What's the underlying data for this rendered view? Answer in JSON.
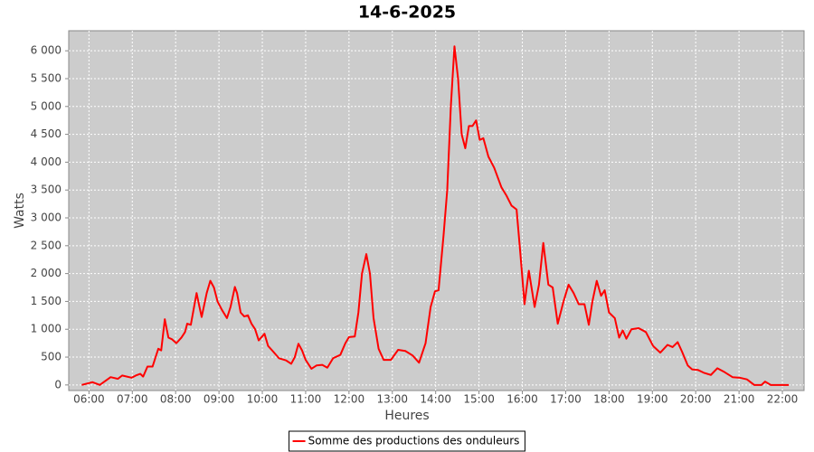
{
  "chart_data": {
    "type": "line",
    "title": "14-6-2025",
    "x_label": "Heures",
    "y_label": "Watts",
    "grid": true,
    "legend_position": "bottom",
    "xlim": [
      "05:32",
      "22:30"
    ],
    "xticks": [
      "06:00",
      "07:00",
      "08:00",
      "09:00",
      "10:00",
      "11:00",
      "12:00",
      "13:00",
      "14:00",
      "15:00",
      "16:00",
      "17:00",
      "18:00",
      "19:00",
      "20:00",
      "21:00",
      "22:00"
    ],
    "ylim": [
      -100,
      6360
    ],
    "yticks": [
      0,
      500,
      {
        "value": 1000,
        "label": "1 000"
      },
      {
        "value": 1500,
        "label": "1 500"
      },
      {
        "value": 2000,
        "label": "2 000"
      },
      {
        "value": 2500,
        "label": "2 500"
      },
      {
        "value": 3000,
        "label": "3 000"
      },
      {
        "value": 3500,
        "label": "3 500"
      },
      {
        "value": 4000,
        "label": "4 000"
      },
      {
        "value": 4500,
        "label": "4 500"
      },
      {
        "value": 5000,
        "label": "5 000"
      },
      {
        "value": 5500,
        "label": "5 500"
      },
      {
        "value": 6000,
        "label": "6 000"
      }
    ],
    "x": [
      "05:50",
      "06:05",
      "06:15",
      "06:30",
      "06:40",
      "06:46",
      "06:59",
      "07:05",
      "07:11",
      "07:15",
      "07:21",
      "07:28",
      "07:36",
      "07:40",
      "07:45",
      "07:50",
      "07:55",
      "08:01",
      "08:08",
      "08:13",
      "08:16",
      "08:21",
      "08:29",
      "08:33",
      "08:36",
      "08:43",
      "08:48",
      "08:53",
      "08:58",
      "09:04",
      "09:11",
      "09:16",
      "09:22",
      "09:25",
      "09:30",
      "09:35",
      "09:40",
      "09:45",
      "09:50",
      "09:55",
      "10:03",
      "10:08",
      "10:15",
      "10:23",
      "10:33",
      "10:40",
      "10:45",
      "10:50",
      "10:55",
      "11:00",
      "11:08",
      "11:15",
      "11:23",
      "11:30",
      "11:38",
      "11:48",
      "11:55",
      "12:00",
      "12:08",
      "12:13",
      "12:18",
      "12:24",
      "12:29",
      "12:34",
      "12:41",
      "12:48",
      "12:58",
      "13:08",
      "13:18",
      "13:28",
      "13:37",
      "13:46",
      "13:53",
      "13:59",
      "14:04",
      "14:11",
      "14:16",
      "14:21",
      "14:26",
      "14:31",
      "14:36",
      "14:41",
      "14:46",
      "14:51",
      "14:56",
      "15:01",
      "15:06",
      "15:13",
      "15:21",
      "15:31",
      "15:38",
      "15:45",
      "15:52",
      "15:57",
      "16:03",
      "16:09",
      "16:17",
      "16:23",
      "16:29",
      "16:36",
      "16:42",
      "16:49",
      "16:57",
      "17:04",
      "17:11",
      "17:18",
      "17:26",
      "17:32",
      "17:37",
      "17:43",
      "17:49",
      "17:54",
      "18:00",
      "18:08",
      "18:14",
      "18:19",
      "18:24",
      "18:31",
      "18:41",
      "18:51",
      "19:01",
      "19:11",
      "19:21",
      "19:28",
      "19:35",
      "19:41",
      "19:49",
      "19:55",
      "20:03",
      "20:11",
      "20:21",
      "20:30",
      "20:40",
      "20:51",
      "21:01",
      "21:11",
      "21:21",
      "21:31",
      "21:36",
      "21:44",
      "22:09"
    ],
    "series": [
      {
        "name": "Somme des productions des onduleurs",
        "color": "#ff0000",
        "values": [
          0,
          50,
          0,
          140,
          110,
          170,
          130,
          170,
          200,
          150,
          330,
          330,
          650,
          620,
          1180,
          850,
          820,
          750,
          850,
          950,
          1100,
          1080,
          1650,
          1400,
          1220,
          1650,
          1870,
          1750,
          1500,
          1350,
          1200,
          1400,
          1760,
          1650,
          1300,
          1230,
          1250,
          1100,
          1000,
          800,
          920,
          700,
          600,
          480,
          440,
          380,
          500,
          740,
          620,
          450,
          290,
          350,
          360,
          310,
          480,
          540,
          750,
          860,
          870,
          1300,
          2000,
          2350,
          2000,
          1200,
          650,
          450,
          450,
          630,
          610,
          530,
          400,
          750,
          1400,
          1680,
          1700,
          2700,
          3500,
          5000,
          6080,
          5500,
          4500,
          4250,
          4650,
          4650,
          4750,
          4400,
          4430,
          4100,
          3900,
          3550,
          3400,
          3220,
          3150,
          2400,
          1450,
          2050,
          1400,
          1800,
          2550,
          1800,
          1750,
          1100,
          1500,
          1800,
          1650,
          1450,
          1450,
          1080,
          1500,
          1870,
          1600,
          1700,
          1300,
          1200,
          850,
          980,
          830,
          1000,
          1020,
          950,
          700,
          580,
          720,
          680,
          770,
          600,
          350,
          280,
          270,
          220,
          180,
          300,
          230,
          140,
          130,
          100,
          0,
          0,
          60,
          0,
          0
        ]
      }
    ]
  }
}
